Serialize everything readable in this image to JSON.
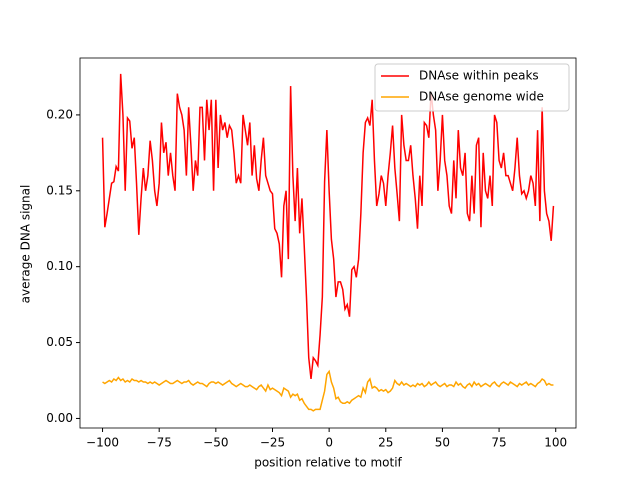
{
  "chart_data": {
    "type": "line",
    "xlabel": "position relative to motif",
    "ylabel": "average DNA signal",
    "xlim": [
      -109.95,
      108.95
    ],
    "ylim": [
      -0.0063,
      0.2375
    ],
    "xticks": [
      {
        "value": -100,
        "label": "−100"
      },
      {
        "value": -75,
        "label": "−75"
      },
      {
        "value": -50,
        "label": "−50"
      },
      {
        "value": -25,
        "label": "−25"
      },
      0,
      25,
      50,
      75,
      100
    ],
    "yticks": [
      {
        "value": 0,
        "label": "0.00"
      },
      {
        "value": 0.05,
        "label": "0.05"
      },
      {
        "value": 0.1,
        "label": "0.10"
      },
      {
        "value": 0.15,
        "label": "0.15"
      },
      {
        "value": 0.2,
        "label": "0.20"
      }
    ],
    "legend": "upper right",
    "x": [
      -100,
      -99,
      -98,
      -97,
      -96,
      -95,
      -94,
      -93,
      -92,
      -91,
      -90,
      -89,
      -88,
      -87,
      -86,
      -85,
      -84,
      -83,
      -82,
      -81,
      -80,
      -79,
      -78,
      -77,
      -76,
      -75,
      -74,
      -73,
      -72,
      -71,
      -70,
      -69,
      -68,
      -67,
      -66,
      -65,
      -64,
      -63,
      -62,
      -61,
      -60,
      -59,
      -58,
      -57,
      -56,
      -55,
      -54,
      -53,
      -52,
      -51,
      -50,
      -49,
      -48,
      -47,
      -46,
      -45,
      -44,
      -43,
      -42,
      -41,
      -40,
      -39,
      -38,
      -37,
      -36,
      -35,
      -34,
      -33,
      -32,
      -31,
      -30,
      -29,
      -28,
      -27,
      -26,
      -25,
      -24,
      -23,
      -22,
      -21,
      -20,
      -19,
      -18,
      -17,
      -16,
      -15,
      -14,
      -13,
      -12,
      -11,
      -10,
      -9,
      -8,
      -7,
      -6,
      -5,
      -4,
      -3,
      -2,
      -1,
      0,
      1,
      2,
      3,
      4,
      5,
      6,
      7,
      8,
      9,
      10,
      11,
      12,
      13,
      14,
      15,
      16,
      17,
      18,
      19,
      20,
      21,
      22,
      23,
      24,
      25,
      26,
      27,
      28,
      29,
      30,
      31,
      32,
      33,
      34,
      35,
      36,
      37,
      38,
      39,
      40,
      41,
      42,
      43,
      44,
      45,
      46,
      47,
      48,
      49,
      50,
      51,
      52,
      53,
      54,
      55,
      56,
      57,
      58,
      59,
      60,
      61,
      62,
      63,
      64,
      65,
      66,
      67,
      68,
      69,
      70,
      71,
      72,
      73,
      74,
      75,
      76,
      77,
      78,
      79,
      80,
      81,
      82,
      83,
      84,
      85,
      86,
      87,
      88,
      89,
      90,
      91,
      92,
      93,
      94,
      95,
      96,
      97,
      98,
      99
    ],
    "series": [
      {
        "name": "DNAse within peaks",
        "color": "#ff0000",
        "values": [
          0.185,
          0.126,
          0.135,
          0.145,
          0.155,
          0.156,
          0.166,
          0.163,
          0.227,
          0.2,
          0.15,
          0.198,
          0.196,
          0.178,
          0.185,
          0.155,
          0.121,
          0.145,
          0.165,
          0.15,
          0.16,
          0.183,
          0.17,
          0.15,
          0.14,
          0.155,
          0.195,
          0.175,
          0.182,
          0.16,
          0.175,
          0.16,
          0.15,
          0.214,
          0.205,
          0.2,
          0.19,
          0.16,
          0.205,
          0.18,
          0.15,
          0.17,
          0.16,
          0.205,
          0.205,
          0.17,
          0.21,
          0.19,
          0.21,
          0.15,
          0.21,
          0.165,
          0.2,
          0.19,
          0.195,
          0.185,
          0.193,
          0.19,
          0.175,
          0.155,
          0.16,
          0.155,
          0.2,
          0.19,
          0.18,
          0.195,
          0.16,
          0.18,
          0.158,
          0.15,
          0.17,
          0.185,
          0.16,
          0.155,
          0.15,
          0.148,
          0.125,
          0.122,
          0.115,
          0.093,
          0.14,
          0.15,
          0.105,
          0.219,
          0.16,
          0.13,
          0.165,
          0.122,
          0.145,
          0.114,
          0.08,
          0.04,
          0.026,
          0.04,
          0.038,
          0.035,
          0.055,
          0.08,
          0.156,
          0.19,
          0.15,
          0.118,
          0.105,
          0.08,
          0.09,
          0.09,
          0.085,
          0.072,
          0.075,
          0.067,
          0.098,
          0.1,
          0.093,
          0.105,
          0.135,
          0.175,
          0.195,
          0.198,
          0.193,
          0.21,
          0.17,
          0.14,
          0.148,
          0.16,
          0.155,
          0.14,
          0.16,
          0.175,
          0.193,
          0.165,
          0.148,
          0.13,
          0.2,
          0.18,
          0.17,
          0.17,
          0.18,
          0.16,
          0.145,
          0.125,
          0.16,
          0.14,
          0.195,
          0.193,
          0.185,
          0.215,
          0.2,
          0.19,
          0.15,
          0.17,
          0.2,
          0.17,
          0.16,
          0.14,
          0.135,
          0.17,
          0.145,
          0.19,
          0.165,
          0.16,
          0.175,
          0.135,
          0.13,
          0.16,
          0.135,
          0.18,
          0.185,
          0.126,
          0.175,
          0.15,
          0.145,
          0.16,
          0.14,
          0.2,
          0.195,
          0.17,
          0.165,
          0.175,
          0.16,
          0.16,
          0.155,
          0.15,
          0.165,
          0.185,
          0.16,
          0.148,
          0.15,
          0.145,
          0.15,
          0.16,
          0.155,
          0.14,
          0.19,
          0.13,
          0.205,
          0.15,
          0.135,
          0.13,
          0.117,
          0.14
        ]
      },
      {
        "name": "DNAse genome wide",
        "color": "#ffa500",
        "values": [
          0.024,
          0.023,
          0.024,
          0.025,
          0.024,
          0.026,
          0.025,
          0.027,
          0.025,
          0.026,
          0.024,
          0.025,
          0.024,
          0.026,
          0.025,
          0.025,
          0.024,
          0.025,
          0.024,
          0.024,
          0.023,
          0.024,
          0.023,
          0.024,
          0.023,
          0.022,
          0.023,
          0.024,
          0.025,
          0.024,
          0.023,
          0.023,
          0.024,
          0.025,
          0.024,
          0.023,
          0.024,
          0.024,
          0.025,
          0.023,
          0.022,
          0.023,
          0.024,
          0.023,
          0.023,
          0.022,
          0.021,
          0.023,
          0.024,
          0.024,
          0.023,
          0.024,
          0.023,
          0.022,
          0.023,
          0.024,
          0.025,
          0.023,
          0.022,
          0.021,
          0.022,
          0.023,
          0.022,
          0.021,
          0.021,
          0.022,
          0.021,
          0.02,
          0.019,
          0.021,
          0.022,
          0.02,
          0.018,
          0.022,
          0.019,
          0.02,
          0.019,
          0.018,
          0.017,
          0.015,
          0.02,
          0.019,
          0.018,
          0.014,
          0.016,
          0.015,
          0.016,
          0.012,
          0.013,
          0.01,
          0.008,
          0.006,
          0.006,
          0.005,
          0.006,
          0.006,
          0.006,
          0.012,
          0.018,
          0.029,
          0.031,
          0.024,
          0.02,
          0.013,
          0.014,
          0.011,
          0.01,
          0.01,
          0.011,
          0.01,
          0.012,
          0.013,
          0.014,
          0.015,
          0.014,
          0.02,
          0.017,
          0.024,
          0.026,
          0.02,
          0.021,
          0.02,
          0.018,
          0.019,
          0.018,
          0.019,
          0.017,
          0.018,
          0.02,
          0.025,
          0.023,
          0.022,
          0.024,
          0.022,
          0.023,
          0.022,
          0.021,
          0.022,
          0.021,
          0.023,
          0.022,
          0.023,
          0.021,
          0.022,
          0.024,
          0.022,
          0.023,
          0.024,
          0.022,
          0.021,
          0.022,
          0.023,
          0.021,
          0.022,
          0.022,
          0.021,
          0.024,
          0.022,
          0.023,
          0.021,
          0.02,
          0.022,
          0.023,
          0.021,
          0.024,
          0.022,
          0.023,
          0.021,
          0.022,
          0.023,
          0.022,
          0.021,
          0.023,
          0.024,
          0.022,
          0.021,
          0.023,
          0.024,
          0.023,
          0.022,
          0.024,
          0.023,
          0.022,
          0.021,
          0.023,
          0.022,
          0.023,
          0.024,
          0.022,
          0.023,
          0.022,
          0.021,
          0.023,
          0.024,
          0.026,
          0.025,
          0.022,
          0.023,
          0.022,
          0.022
        ]
      }
    ]
  }
}
